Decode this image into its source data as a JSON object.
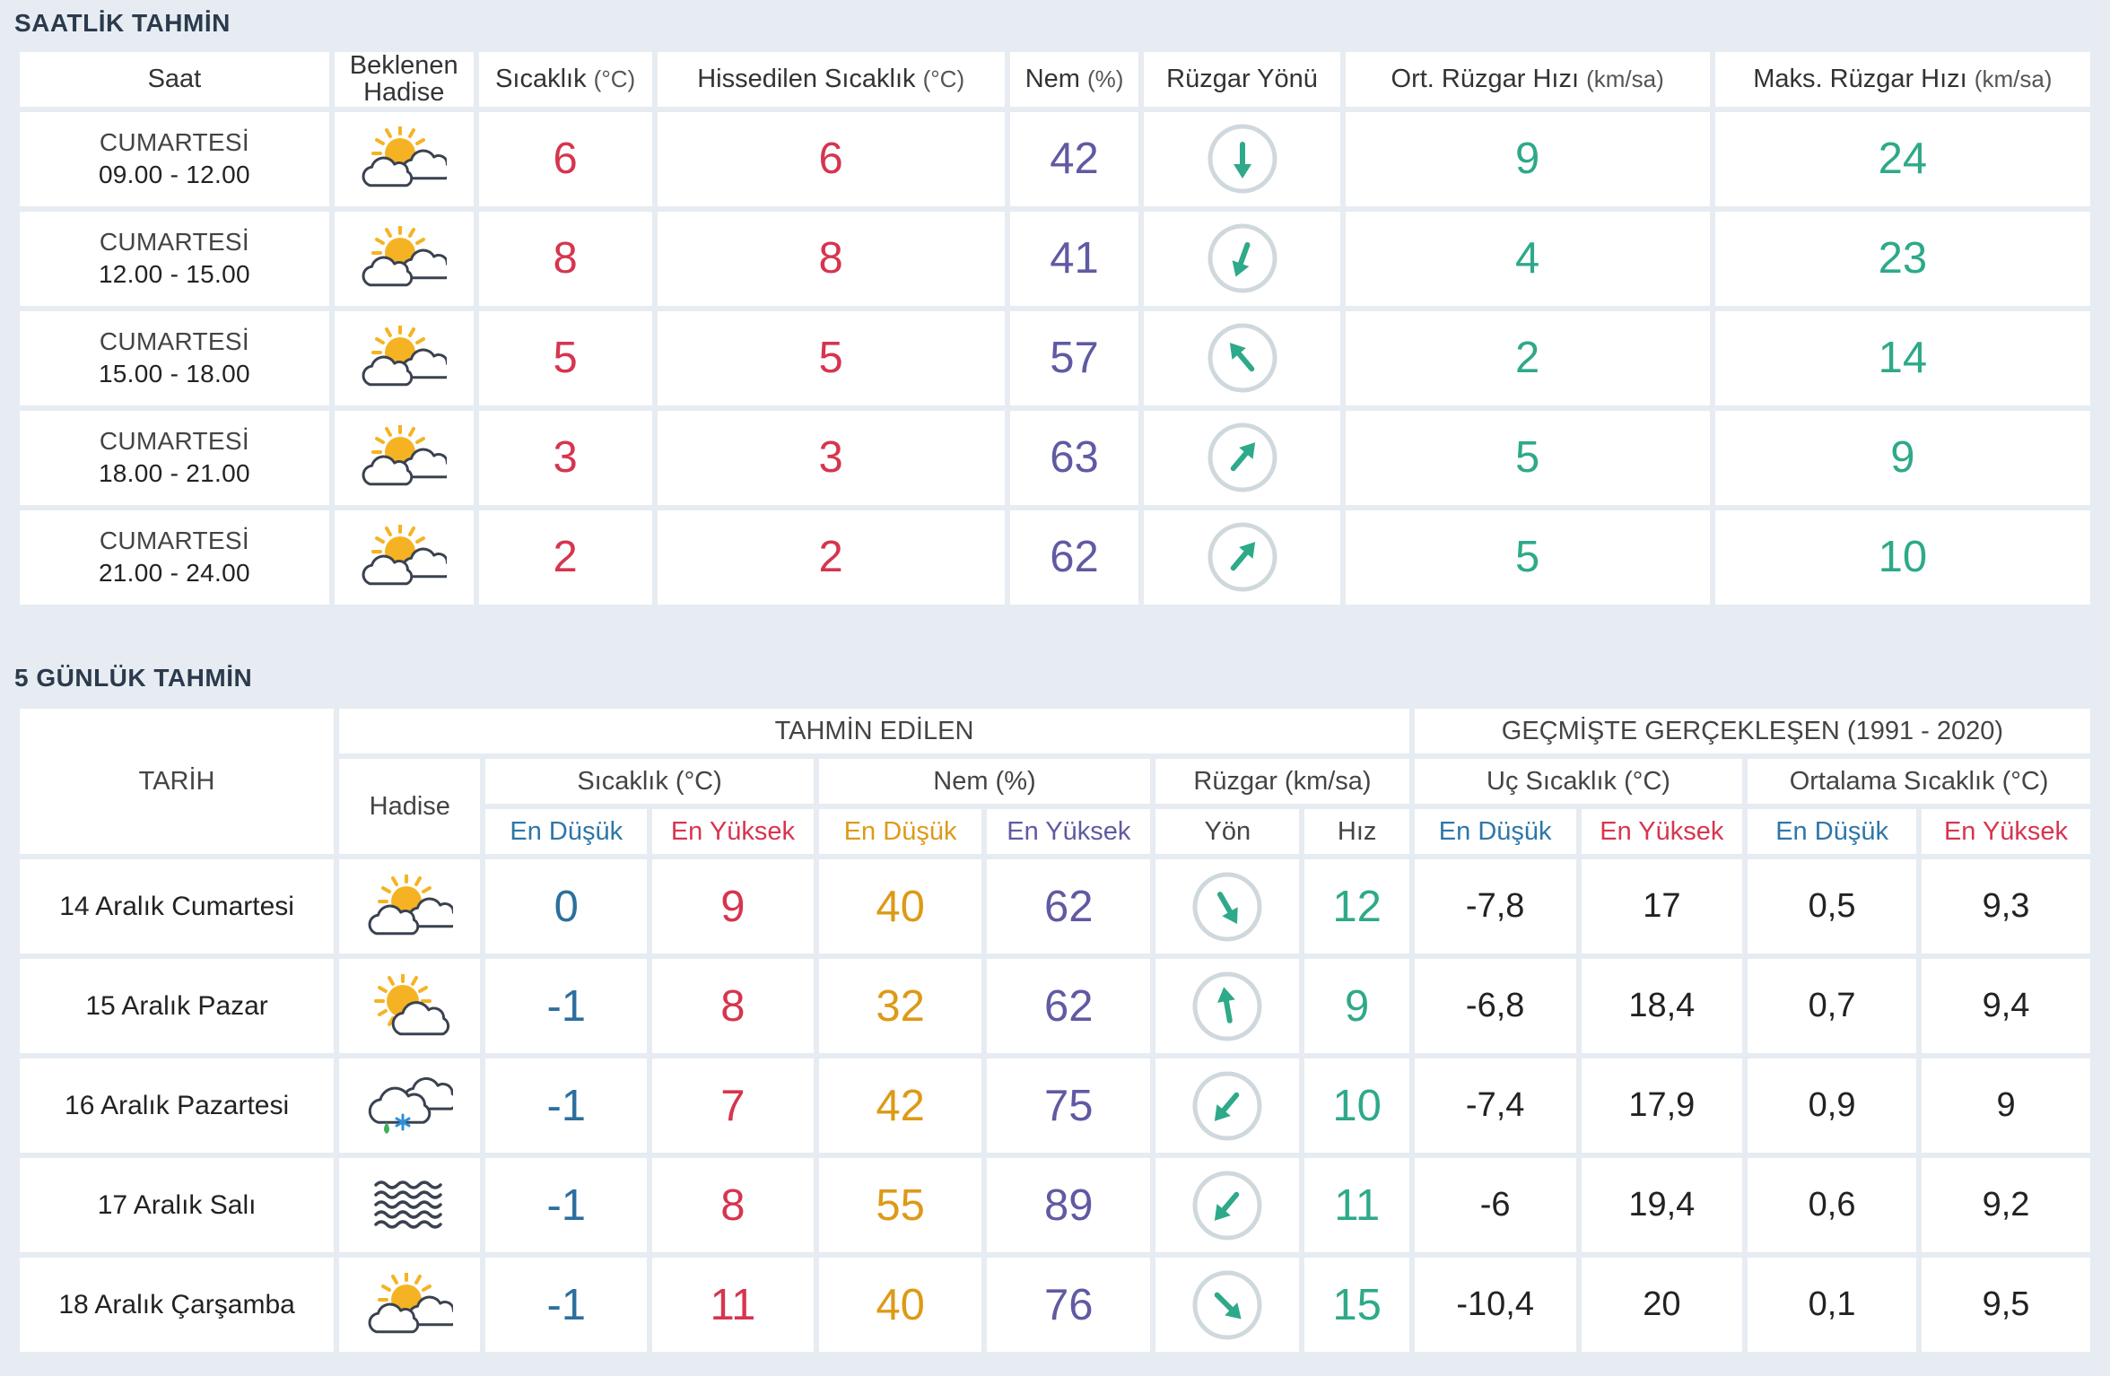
{
  "hourly": {
    "title": "SAATLİK TAHMİN",
    "headers": {
      "time": "Saat",
      "event_line1": "Beklenen",
      "event_line2": "Hadise",
      "temp": "Sıcaklık",
      "temp_unit": "(°C)",
      "feels": "Hissedilen Sıcaklık",
      "feels_unit": "(°C)",
      "humidity": "Nem",
      "humidity_unit": "(%)",
      "wind_dir": "Rüzgar Yönü",
      "avg_wind": "Ort. Rüzgar Hızı",
      "avg_wind_unit": "(km/sa)",
      "max_wind": "Maks. Rüzgar Hızı",
      "max_wind_unit": "(km/sa)"
    },
    "rows": [
      {
        "day": "CUMARTESİ",
        "range": "09.00 - 12.00",
        "icon": "partly-cloudy-icon",
        "temp": "6",
        "feels": "6",
        "humidity": "42",
        "wind_deg": 180,
        "avg_wind": "9",
        "max_wind": "24"
      },
      {
        "day": "CUMARTESİ",
        "range": "12.00 - 15.00",
        "icon": "partly-cloudy-icon",
        "temp": "8",
        "feels": "8",
        "humidity": "41",
        "wind_deg": 200,
        "avg_wind": "4",
        "max_wind": "23"
      },
      {
        "day": "CUMARTESİ",
        "range": "15.00 - 18.00",
        "icon": "partly-cloudy-icon",
        "temp": "5",
        "feels": "5",
        "humidity": "57",
        "wind_deg": 320,
        "avg_wind": "2",
        "max_wind": "14"
      },
      {
        "day": "CUMARTESİ",
        "range": "18.00 - 21.00",
        "icon": "partly-cloudy-icon",
        "temp": "3",
        "feels": "3",
        "humidity": "63",
        "wind_deg": 40,
        "avg_wind": "5",
        "max_wind": "9"
      },
      {
        "day": "CUMARTESİ",
        "range": "21.00 - 24.00",
        "icon": "partly-cloudy-icon",
        "temp": "2",
        "feels": "2",
        "humidity": "62",
        "wind_deg": 40,
        "avg_wind": "5",
        "max_wind": "10"
      }
    ]
  },
  "daily": {
    "title": "5 GÜNLÜK TAHMİN",
    "headers": {
      "date": "TARİH",
      "forecast_group": "TAHMİN EDİLEN",
      "history_group": "GEÇMİŞTE GERÇEKLEŞEN (1991 - 2020)",
      "event": "Hadise",
      "temp": "Sıcaklık (°C)",
      "humidity": "Nem (%)",
      "wind": "Rüzgar (km/sa)",
      "extreme_temp": "Uç Sıcaklık (°C)",
      "avg_temp": "Ortalama Sıcaklık (°C)",
      "min": "En Düşük",
      "max": "En Yüksek",
      "direction": "Yön",
      "speed": "Hız"
    },
    "rows": [
      {
        "date": "14 Aralık Cumartesi",
        "icon": "partly-cloudy-icon",
        "tmin": "0",
        "tmax": "9",
        "hmin": "40",
        "hmax": "62",
        "wind_deg": 150,
        "speed": "12",
        "ext_min": "-7,8",
        "ext_max": "17",
        "avg_min": "0,5",
        "avg_max": "9,3"
      },
      {
        "date": "15 Aralık Pazar",
        "icon": "partly-sunny-icon",
        "tmin": "-1",
        "tmax": "8",
        "hmin": "32",
        "hmax": "62",
        "wind_deg": 350,
        "speed": "9",
        "ext_min": "-6,8",
        "ext_max": "18,4",
        "avg_min": "0,7",
        "avg_max": "9,4"
      },
      {
        "date": "16 Aralık Pazartesi",
        "icon": "sleet-cloud-icon",
        "tmin": "-1",
        "tmax": "7",
        "hmin": "42",
        "hmax": "75",
        "wind_deg": 220,
        "speed": "10",
        "ext_min": "-7,4",
        "ext_max": "17,9",
        "avg_min": "0,9",
        "avg_max": "9"
      },
      {
        "date": "17 Aralık Salı",
        "icon": "fog-icon",
        "tmin": "-1",
        "tmax": "8",
        "hmin": "55",
        "hmax": "89",
        "wind_deg": 220,
        "speed": "11",
        "ext_min": "-6",
        "ext_max": "19,4",
        "avg_min": "0,6",
        "avg_max": "9,2"
      },
      {
        "date": "18 Aralık Çarşamba",
        "icon": "partly-cloudy-icon",
        "tmin": "-1",
        "tmax": "11",
        "hmin": "40",
        "hmax": "76",
        "wind_deg": 135,
        "speed": "15",
        "ext_min": "-10,4",
        "ext_max": "20",
        "avg_min": "0,1",
        "avg_max": "9,5"
      }
    ]
  },
  "colors": {
    "background": "#e6ecf1",
    "temp_red": "#d6354f",
    "humidity_purple": "#5f5aa2",
    "wind_teal": "#2ea989",
    "min_blue": "#2d6f9e",
    "humidity_orange": "#dd9a17",
    "sun_yellow": "#f5b324"
  }
}
